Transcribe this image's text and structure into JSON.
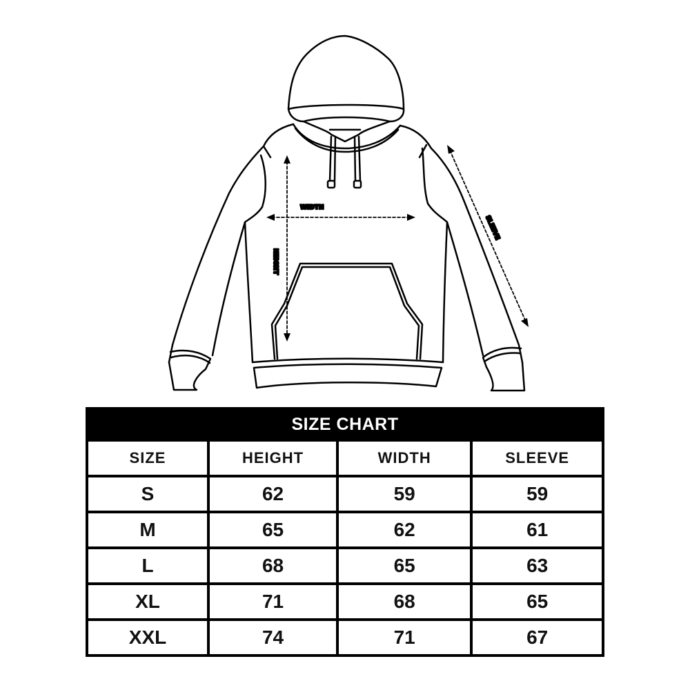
{
  "diagram": {
    "labels": {
      "width": "WIDTH",
      "height": "HEIGHT",
      "sleeve": "SLEEVE"
    }
  },
  "size_chart": {
    "title": "SIZE CHART",
    "headers": [
      "SIZE",
      "HEIGHT",
      "WIDTH",
      "SLEEVE"
    ],
    "rows": [
      [
        "S",
        "62",
        "59",
        "59"
      ],
      [
        "M",
        "65",
        "62",
        "61"
      ],
      [
        "L",
        "68",
        "65",
        "63"
      ],
      [
        "XL",
        "71",
        "68",
        "65"
      ],
      [
        "XXL",
        "74",
        "71",
        "67"
      ]
    ]
  },
  "colors": {
    "header_bg": "#000000",
    "header_text": "#ffffff",
    "border": "#000000"
  }
}
